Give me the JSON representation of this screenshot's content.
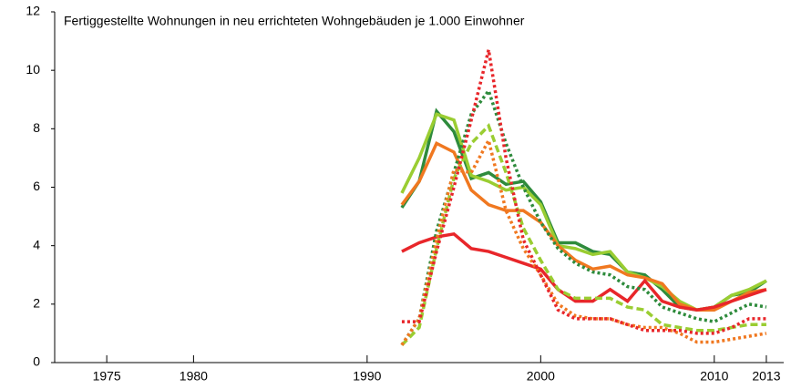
{
  "chart_data": {
    "type": "line",
    "title": "Fertiggestellte Wohnungen in neu errichteten Wohngebäuden je 1.000 Einwohner",
    "x": [
      1992,
      1993,
      1994,
      1995,
      1996,
      1997,
      1998,
      1999,
      2000,
      2001,
      2002,
      2003,
      2004,
      2005,
      2006,
      2007,
      2008,
      2009,
      2010,
      2011,
      2012,
      2013
    ],
    "series": [
      {
        "color": "#2e8b3c",
        "dash": "solid",
        "values": [
          5.3,
          6.2,
          8.6,
          7.9,
          6.3,
          6.5,
          6.1,
          6.2,
          5.5,
          4.1,
          4.1,
          3.8,
          3.7,
          3.1,
          3.0,
          2.5,
          1.9,
          1.8,
          1.9,
          2.3,
          2.4,
          2.8
        ]
      },
      {
        "color": "#9acd32",
        "dash": "solid",
        "values": [
          5.8,
          7.0,
          8.5,
          8.3,
          6.4,
          6.2,
          5.9,
          6.0,
          5.4,
          4.0,
          3.9,
          3.7,
          3.8,
          3.1,
          2.9,
          2.6,
          2.1,
          1.8,
          1.9,
          2.3,
          2.5,
          2.8
        ]
      },
      {
        "color": "#f07820",
        "dash": "solid",
        "values": [
          5.4,
          6.2,
          7.5,
          7.2,
          5.9,
          5.4,
          5.2,
          5.2,
          4.8,
          4.0,
          3.5,
          3.2,
          3.3,
          3.0,
          2.9,
          2.7,
          2.0,
          1.8,
          1.8,
          2.1,
          2.4,
          2.5
        ]
      },
      {
        "color": "#e8262a",
        "dash": "solid",
        "values": [
          3.8,
          4.1,
          4.3,
          4.4,
          3.9,
          3.8,
          3.6,
          3.4,
          3.2,
          2.5,
          2.1,
          2.1,
          2.5,
          2.1,
          2.8,
          2.1,
          1.9,
          1.8,
          1.9,
          2.1,
          2.3,
          2.5
        ]
      },
      {
        "color": "#2e8b3c",
        "dash": "dotted",
        "values": [
          0.6,
          1.5,
          4.5,
          6.5,
          8.5,
          9.3,
          7.5,
          6.0,
          4.8,
          3.9,
          3.4,
          3.1,
          3.0,
          2.6,
          2.5,
          1.9,
          1.7,
          1.5,
          1.4,
          1.7,
          2.0,
          1.9
        ]
      },
      {
        "color": "#9acd32",
        "dash": "dashed",
        "values": [
          0.6,
          1.2,
          3.9,
          6.3,
          7.5,
          8.1,
          6.5,
          4.6,
          3.5,
          2.5,
          2.2,
          2.2,
          2.2,
          1.9,
          1.8,
          1.3,
          1.2,
          1.1,
          1.1,
          1.2,
          1.3,
          1.3
        ]
      },
      {
        "color": "#f07820",
        "dash": "dotted",
        "values": [
          0.6,
          1.5,
          4.2,
          6.6,
          6.5,
          7.6,
          5.2,
          3.9,
          3.0,
          2.0,
          1.6,
          1.5,
          1.5,
          1.3,
          1.2,
          1.2,
          1.0,
          0.7,
          0.7,
          0.8,
          0.9,
          1.0
        ]
      },
      {
        "color": "#e8262a",
        "dash": "dotted",
        "values": [
          1.4,
          1.4,
          3.8,
          6.0,
          8.3,
          10.7,
          7.0,
          4.2,
          3.0,
          1.8,
          1.5,
          1.5,
          1.5,
          1.3,
          1.1,
          1.1,
          1.1,
          1.0,
          1.0,
          1.2,
          1.5,
          1.5
        ]
      }
    ],
    "xlim": [
      1972,
      2014
    ],
    "xticks": [
      1975,
      1980,
      1990,
      2000,
      2010,
      2013
    ],
    "ylim": [
      0,
      12
    ],
    "yticks": [
      0,
      2,
      4,
      6,
      8,
      10,
      12
    ]
  }
}
